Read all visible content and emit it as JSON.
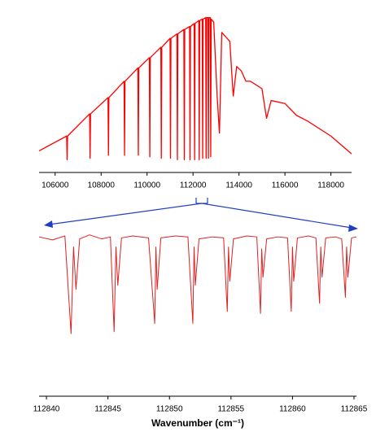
{
  "chart_data": [
    {
      "type": "line",
      "color": "#ff0000",
      "xlim": [
        105300,
        118900
      ],
      "ylim": [
        0,
        1
      ],
      "xticks": [
        106000,
        108000,
        110000,
        112000,
        114000,
        116000,
        118000
      ],
      "x": [
        105300,
        106500,
        106520,
        106540,
        107500,
        107520,
        107540,
        108300,
        108320,
        108340,
        109000,
        109020,
        109040,
        109600,
        109620,
        109640,
        110100,
        110120,
        110140,
        110600,
        110620,
        110640,
        111000,
        111020,
        111040,
        111300,
        111320,
        111340,
        111600,
        111620,
        111640,
        111850,
        111870,
        111890,
        112050,
        112070,
        112090,
        112250,
        112270,
        112290,
        112400,
        112420,
        112440,
        112550,
        112570,
        112590,
        112650,
        112670,
        112690,
        112750,
        112770,
        112790,
        112900,
        113050,
        113150,
        113250,
        113600,
        113750,
        113900,
        114100,
        114300,
        114500,
        115000,
        115200,
        115400,
        116000,
        116500,
        117000,
        118000,
        118900
      ],
      "values": [
        0.08,
        0.18,
        0.02,
        0.18,
        0.33,
        0.03,
        0.33,
        0.44,
        0.05,
        0.44,
        0.55,
        0.05,
        0.55,
        0.64,
        0.05,
        0.64,
        0.71,
        0.04,
        0.71,
        0.78,
        0.03,
        0.78,
        0.84,
        0.03,
        0.84,
        0.87,
        0.02,
        0.87,
        0.9,
        0.02,
        0.9,
        0.92,
        0.02,
        0.92,
        0.94,
        0.02,
        0.94,
        0.96,
        0.02,
        0.96,
        0.97,
        0.03,
        0.97,
        0.98,
        0.03,
        0.98,
        0.98,
        0.03,
        0.98,
        0.98,
        0.04,
        0.97,
        0.95,
        0.45,
        0.2,
        0.88,
        0.82,
        0.45,
        0.65,
        0.62,
        0.55,
        0.55,
        0.5,
        0.3,
        0.42,
        0.4,
        0.32,
        0.28,
        0.18,
        0.06
      ]
    },
    {
      "type": "line",
      "color": "#e02020",
      "xlim": [
        112839.4,
        112865.2
      ],
      "ylim": [
        0,
        1.05
      ],
      "xticks": [
        112840,
        112845,
        112850,
        112855,
        112860,
        112865
      ],
      "xlabel": "Wavenumber (cm⁻¹)",
      "x": [
        112839.4,
        112840.5,
        112841.5,
        112842.0,
        112842.2,
        112842.4,
        112842.7,
        112843.5,
        112844.5,
        112845.2,
        112845.5,
        112845.65,
        112845.8,
        112846.1,
        112847.0,
        112848.3,
        112848.8,
        112848.9,
        112849.0,
        112849.3,
        112850.5,
        112851.5,
        112851.9,
        112852.0,
        112852.1,
        112852.4,
        112853.5,
        112854.4,
        112854.7,
        112854.8,
        112854.9,
        112855.2,
        112856.3,
        112857.1,
        112857.4,
        112857.5,
        112857.6,
        112857.9,
        112858.8,
        112859.6,
        112859.9,
        112860.0,
        112860.1,
        112860.4,
        112861.3,
        112861.9,
        112862.2,
        112862.3,
        112862.4,
        112862.7,
        112863.5,
        112864.0,
        112864.3,
        112864.4,
        112864.5,
        112864.8,
        112865.2
      ],
      "values": [
        1.0,
        0.97,
        1.01,
        0.04,
        0.9,
        0.48,
        0.98,
        1.02,
        0.98,
        1.0,
        0.06,
        0.9,
        0.52,
        0.99,
        1.01,
        0.99,
        0.14,
        0.9,
        0.48,
        0.99,
        1.01,
        1.0,
        0.14,
        0.9,
        0.52,
        0.98,
        1.0,
        0.99,
        0.26,
        0.9,
        0.56,
        0.98,
        1.01,
        1.0,
        0.24,
        0.88,
        0.6,
        0.98,
        1.0,
        0.99,
        0.26,
        0.9,
        0.56,
        0.99,
        1.01,
        0.99,
        0.34,
        0.9,
        0.6,
        0.99,
        1.0,
        0.98,
        0.4,
        0.9,
        0.6,
        0.99,
        1.0
      ]
    }
  ]
}
